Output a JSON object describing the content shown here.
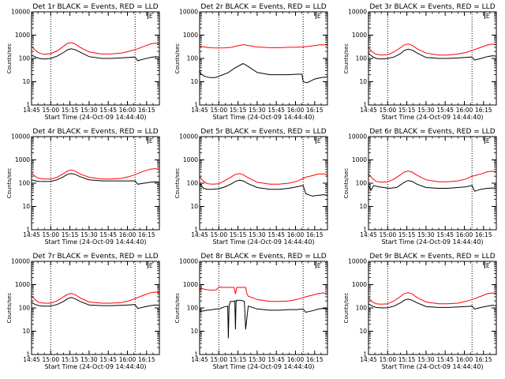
{
  "figure": {
    "xtick_labels": [
      "14:45",
      "15:00",
      "15:15",
      "15:30",
      "15:45",
      "16:00",
      "16:15"
    ],
    "xtick_minutes": [
      0,
      15,
      30,
      45,
      60,
      75,
      90
    ],
    "xlim_minutes": [
      0,
      100
    ],
    "xlabel": "Start Time (24-Oct-09 14:44:40)",
    "ylabel": "Counts/sec",
    "ytick_labels": [
      "1",
      "10",
      "100",
      "1000",
      "10000"
    ],
    "ylim": [
      1,
      10000
    ],
    "yscale": "log",
    "vlines_minutes": [
      15,
      81
    ],
    "marker_label": "E",
    "marker_minute": 91,
    "colors": {
      "events": "#000000",
      "lld": "#ff0000",
      "axes": "#000000"
    }
  },
  "chart_data": [
    {
      "type": "line",
      "title": "Det 1r BLACK = Events, RED = LLD",
      "xlabel": "Start Time (24-Oct-09 14:44:40)",
      "ylabel": "Counts/sec",
      "ylim": [
        1,
        10000
      ],
      "series": [
        {
          "name": "Events",
          "x": [
            0,
            3,
            6,
            10,
            15,
            20,
            25,
            28,
            31,
            34,
            38,
            45,
            55,
            62,
            70,
            76,
            81,
            83,
            88,
            93,
            97,
            100
          ],
          "y": [
            140,
            115,
            100,
            95,
            100,
            125,
            180,
            235,
            260,
            240,
            185,
            120,
            100,
            100,
            105,
            110,
            115,
            80,
            95,
            110,
            120,
            115
          ]
        },
        {
          "name": "LLD",
          "x": [
            0,
            3,
            6,
            10,
            15,
            20,
            25,
            28,
            31,
            34,
            38,
            45,
            55,
            62,
            70,
            76,
            81,
            83,
            88,
            93,
            97,
            100
          ],
          "y": [
            330,
            220,
            170,
            150,
            160,
            210,
            330,
            440,
            480,
            420,
            300,
            190,
            155,
            155,
            170,
            200,
            240,
            260,
            330,
            420,
            450,
            420
          ]
        }
      ]
    },
    {
      "type": "line",
      "title": "Det 2r BLACK = Events, RED = LLD",
      "xlabel": "Start Time (24-Oct-09 14:44:40)",
      "ylabel": "Counts/sec",
      "ylim": [
        1,
        10000
      ],
      "series": [
        {
          "name": "Events",
          "x": [
            0,
            1,
            2,
            4,
            8,
            12,
            16,
            22,
            28,
            34,
            38,
            45,
            55,
            62,
            70,
            76,
            80,
            81,
            84,
            90,
            95,
            100
          ],
          "y": [
            30,
            22,
            20,
            17,
            15,
            15,
            18,
            24,
            40,
            60,
            45,
            25,
            20,
            20,
            20,
            21,
            21,
            10,
            9,
            13,
            15,
            16
          ]
        },
        {
          "name": "LLD",
          "x": [
            0,
            5,
            10,
            15,
            20,
            25,
            30,
            34,
            38,
            45,
            55,
            62,
            70,
            76,
            81,
            85,
            90,
            95,
            100
          ],
          "y": [
            340,
            300,
            285,
            280,
            285,
            300,
            350,
            390,
            360,
            310,
            290,
            290,
            300,
            305,
            310,
            330,
            360,
            390,
            380
          ]
        }
      ]
    },
    {
      "type": "line",
      "title": "Det 3r BLACK = Events, RED = LLD",
      "xlabel": "Start Time (24-Oct-09 14:44:40)",
      "ylabel": "Counts/sec",
      "ylim": [
        1,
        10000
      ],
      "series": [
        {
          "name": "Events",
          "x": [
            0,
            3,
            6,
            10,
            15,
            20,
            25,
            28,
            31,
            34,
            38,
            45,
            55,
            62,
            70,
            76,
            81,
            83,
            88,
            93,
            97,
            100
          ],
          "y": [
            170,
            120,
            100,
            95,
            100,
            115,
            160,
            220,
            250,
            230,
            170,
            110,
            100,
            100,
            105,
            110,
            115,
            85,
            100,
            120,
            130,
            125
          ]
        },
        {
          "name": "LLD",
          "x": [
            0,
            3,
            6,
            10,
            15,
            20,
            25,
            28,
            31,
            34,
            38,
            45,
            55,
            62,
            70,
            76,
            81,
            83,
            88,
            93,
            97,
            100
          ],
          "y": [
            300,
            190,
            150,
            140,
            145,
            190,
            290,
            380,
            420,
            370,
            260,
            170,
            140,
            140,
            155,
            180,
            220,
            240,
            300,
            380,
            410,
            390
          ]
        }
      ]
    },
    {
      "type": "line",
      "title": "Det 4r BLACK = Events, RED = LLD",
      "xlabel": "Start Time (24-Oct-09 14:44:40)",
      "ylabel": "Counts/sec",
      "ylim": [
        1,
        10000
      ],
      "series": [
        {
          "name": "Events",
          "x": [
            0,
            3,
            6,
            10,
            15,
            20,
            25,
            28,
            31,
            34,
            38,
            45,
            55,
            62,
            70,
            76,
            81,
            83,
            88,
            93,
            97,
            100
          ],
          "y": [
            140,
            125,
            120,
            118,
            120,
            140,
            190,
            240,
            260,
            240,
            190,
            140,
            125,
            125,
            125,
            125,
            125,
            90,
            100,
            110,
            115,
            112
          ]
        },
        {
          "name": "LLD",
          "x": [
            0,
            3,
            6,
            10,
            15,
            20,
            25,
            28,
            31,
            34,
            38,
            45,
            55,
            62,
            70,
            76,
            81,
            83,
            88,
            93,
            97,
            100
          ],
          "y": [
            280,
            190,
            160,
            150,
            150,
            180,
            260,
            330,
            370,
            330,
            250,
            180,
            150,
            150,
            160,
            190,
            230,
            260,
            330,
            400,
            420,
            400
          ]
        }
      ]
    },
    {
      "type": "line",
      "title": "Det 5r BLACK = Events, RED = LLD",
      "xlabel": "Start Time (24-Oct-09 14:44:40)",
      "ylabel": "Counts/sec",
      "ylim": [
        1,
        10000
      ],
      "series": [
        {
          "name": "Events",
          "x": [
            0,
            3,
            6,
            10,
            15,
            20,
            25,
            28,
            31,
            34,
            38,
            45,
            55,
            62,
            70,
            76,
            81,
            83,
            88,
            93,
            97,
            100
          ],
          "y": [
            95,
            60,
            55,
            55,
            58,
            70,
            95,
            120,
            135,
            125,
            95,
            65,
            55,
            55,
            60,
            70,
            80,
            35,
            28,
            30,
            32,
            30
          ]
        },
        {
          "name": "LLD",
          "x": [
            0,
            3,
            6,
            10,
            15,
            20,
            25,
            28,
            31,
            34,
            38,
            45,
            55,
            62,
            70,
            76,
            81,
            83,
            88,
            93,
            97,
            100
          ],
          "y": [
            190,
            120,
            95,
            90,
            95,
            130,
            190,
            240,
            260,
            230,
            170,
            110,
            90,
            90,
            100,
            120,
            160,
            180,
            210,
            250,
            250,
            230
          ]
        }
      ]
    },
    {
      "type": "line",
      "title": "Det 6r BLACK = Events, RED = LLD",
      "xlabel": "Start Time (24-Oct-09 14:44:40)",
      "ylabel": "Counts/sec",
      "ylim": [
        1,
        10000
      ],
      "series": [
        {
          "name": "Events",
          "x": [
            0,
            1,
            2,
            4,
            8,
            12,
            16,
            22,
            28,
            31,
            34,
            38,
            45,
            55,
            62,
            70,
            76,
            81,
            83,
            88,
            93,
            97,
            100
          ],
          "y": [
            80,
            65,
            50,
            80,
            70,
            65,
            60,
            65,
            110,
            130,
            120,
            90,
            65,
            60,
            60,
            65,
            70,
            80,
            45,
            55,
            60,
            62,
            60
          ]
        },
        {
          "name": "LLD",
          "x": [
            0,
            3,
            6,
            10,
            15,
            20,
            25,
            28,
            31,
            34,
            38,
            45,
            55,
            62,
            70,
            76,
            81,
            83,
            88,
            93,
            97,
            100
          ],
          "y": [
            260,
            160,
            120,
            110,
            115,
            150,
            230,
            300,
            330,
            300,
            220,
            140,
            115,
            115,
            125,
            150,
            200,
            210,
            250,
            310,
            330,
            310
          ]
        }
      ]
    },
    {
      "type": "line",
      "title": "Det 7r BLACK = Events, RED = LLD",
      "xlabel": "Start Time (24-Oct-09 14:44:40)",
      "ylabel": "Counts/sec",
      "ylim": [
        1,
        10000
      ],
      "series": [
        {
          "name": "Events",
          "x": [
            0,
            3,
            6,
            10,
            15,
            20,
            25,
            28,
            31,
            34,
            38,
            45,
            55,
            62,
            70,
            76,
            81,
            83,
            88,
            93,
            97,
            100
          ],
          "y": [
            170,
            140,
            125,
            120,
            122,
            140,
            190,
            250,
            280,
            250,
            190,
            135,
            125,
            125,
            130,
            135,
            140,
            95,
            110,
            125,
            135,
            130
          ]
        },
        {
          "name": "LLD",
          "x": [
            0,
            3,
            6,
            10,
            15,
            20,
            25,
            28,
            31,
            34,
            38,
            45,
            55,
            62,
            70,
            76,
            81,
            83,
            88,
            93,
            97,
            100
          ],
          "y": [
            330,
            220,
            170,
            160,
            160,
            200,
            300,
            380,
            420,
            370,
            270,
            180,
            160,
            160,
            170,
            200,
            250,
            280,
            360,
            450,
            480,
            450
          ]
        }
      ]
    },
    {
      "type": "line",
      "title": "Det 8r BLACK = Events, RED = LLD",
      "xlabel": "Start Time (24-Oct-09 14:44:40)",
      "ylabel": "Counts/sec",
      "ylim": [
        1,
        10000
      ],
      "series": [
        {
          "name": "Events",
          "x": [
            0,
            1,
            3,
            6,
            10,
            13,
            14,
            15,
            16,
            17,
            19,
            21,
            22,
            22.5,
            23,
            24,
            26,
            27.5,
            28,
            28.5,
            29,
            30,
            32,
            34,
            35,
            36,
            38,
            45,
            55,
            62,
            70,
            76,
            81,
            83,
            88,
            93,
            97,
            100
          ],
          "y": [
            90,
            70,
            75,
            80,
            85,
            90,
            90,
            90,
            92,
            100,
            110,
            115,
            120,
            5,
            120,
            190,
            190,
            200,
            12,
            210,
            200,
            215,
            215,
            200,
            190,
            12,
            120,
            90,
            80,
            80,
            85,
            85,
            90,
            65,
            75,
            90,
            95,
            90
          ]
        },
        {
          "name": "LLD",
          "x": [
            0,
            1,
            3,
            6,
            10,
            13,
            14,
            15,
            16,
            17,
            22,
            27,
            28,
            29,
            31,
            33,
            36,
            37,
            38,
            45,
            55,
            62,
            70,
            76,
            81,
            83,
            88,
            93,
            97,
            100
          ],
          "y": [
            500,
            700,
            650,
            600,
            580,
            600,
            680,
            760,
            800,
            760,
            760,
            760,
            400,
            760,
            760,
            760,
            760,
            400,
            320,
            230,
            190,
            190,
            200,
            230,
            280,
            300,
            350,
            420,
            440,
            400
          ]
        }
      ]
    },
    {
      "type": "line",
      "title": "Det 9r BLACK = Events, RED = LLD",
      "xlabel": "Start Time (24-Oct-09 14:44:40)",
      "ylabel": "Counts/sec",
      "ylim": [
        1,
        10000
      ],
      "series": [
        {
          "name": "Events",
          "x": [
            0,
            3,
            6,
            10,
            15,
            20,
            25,
            28,
            31,
            34,
            38,
            45,
            55,
            62,
            70,
            76,
            81,
            83,
            88,
            93,
            97,
            100
          ],
          "y": [
            150,
            120,
            105,
            100,
            102,
            120,
            165,
            215,
            240,
            215,
            165,
            115,
            105,
            105,
            110,
            115,
            120,
            90,
            105,
            120,
            130,
            125
          ]
        },
        {
          "name": "LLD",
          "x": [
            0,
            3,
            6,
            10,
            15,
            20,
            25,
            28,
            31,
            34,
            38,
            45,
            55,
            62,
            70,
            76,
            81,
            83,
            88,
            93,
            97,
            100
          ],
          "y": [
            280,
            180,
            150,
            145,
            150,
            200,
            310,
            410,
            450,
            400,
            280,
            180,
            150,
            150,
            160,
            190,
            230,
            250,
            320,
            410,
            440,
            410
          ]
        }
      ]
    }
  ]
}
